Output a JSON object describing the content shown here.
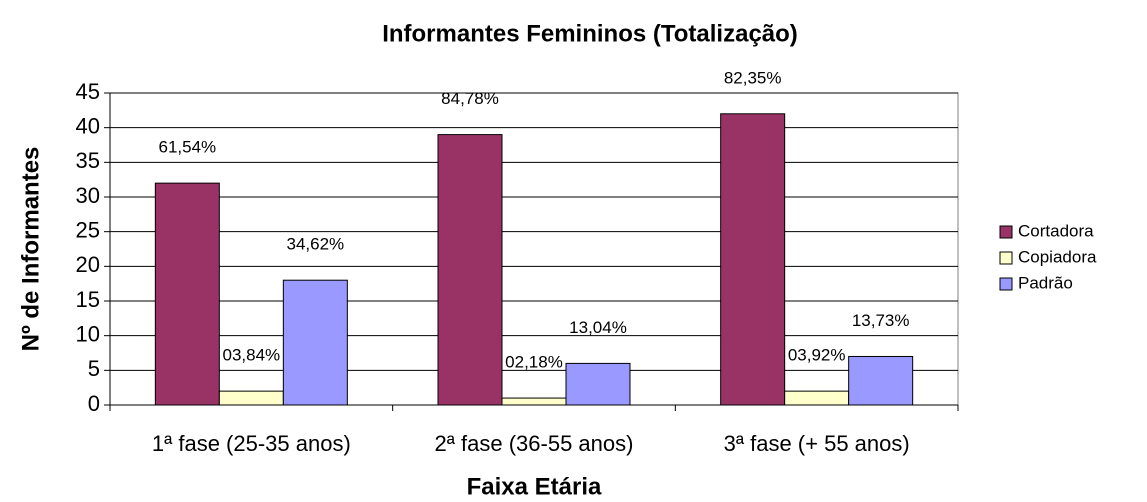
{
  "chart_data": {
    "type": "bar",
    "title": "Informantes Femininos (Totalização)",
    "x_label": "Faixa Etária",
    "y_label": "Nº de Informantes",
    "categories": [
      "1ª fase (25-35 anos)",
      "2ª fase (36-55 anos)",
      "3ª fase (+ 55 anos)"
    ],
    "series": [
      {
        "name": "Cortadora",
        "color": "#993366",
        "values": [
          32,
          39,
          42
        ],
        "value_labels": [
          "61,54%",
          "84,78%",
          "82,35%"
        ]
      },
      {
        "name": "Copiadora",
        "color": "#ffffcc",
        "values": [
          2,
          1,
          2
        ],
        "value_labels": [
          "03,84%",
          "02,18%",
          "03,92%"
        ]
      },
      {
        "name": "Padrão",
        "color": "#9999ff",
        "values": [
          18,
          6,
          7
        ],
        "value_labels": [
          "34,62%",
          "13,04%",
          "13,73%"
        ]
      }
    ],
    "ylim": [
      0,
      45
    ],
    "yticks": [
      0,
      5,
      10,
      15,
      20,
      25,
      30,
      35,
      40,
      45
    ],
    "grid": true,
    "legend": "right"
  }
}
